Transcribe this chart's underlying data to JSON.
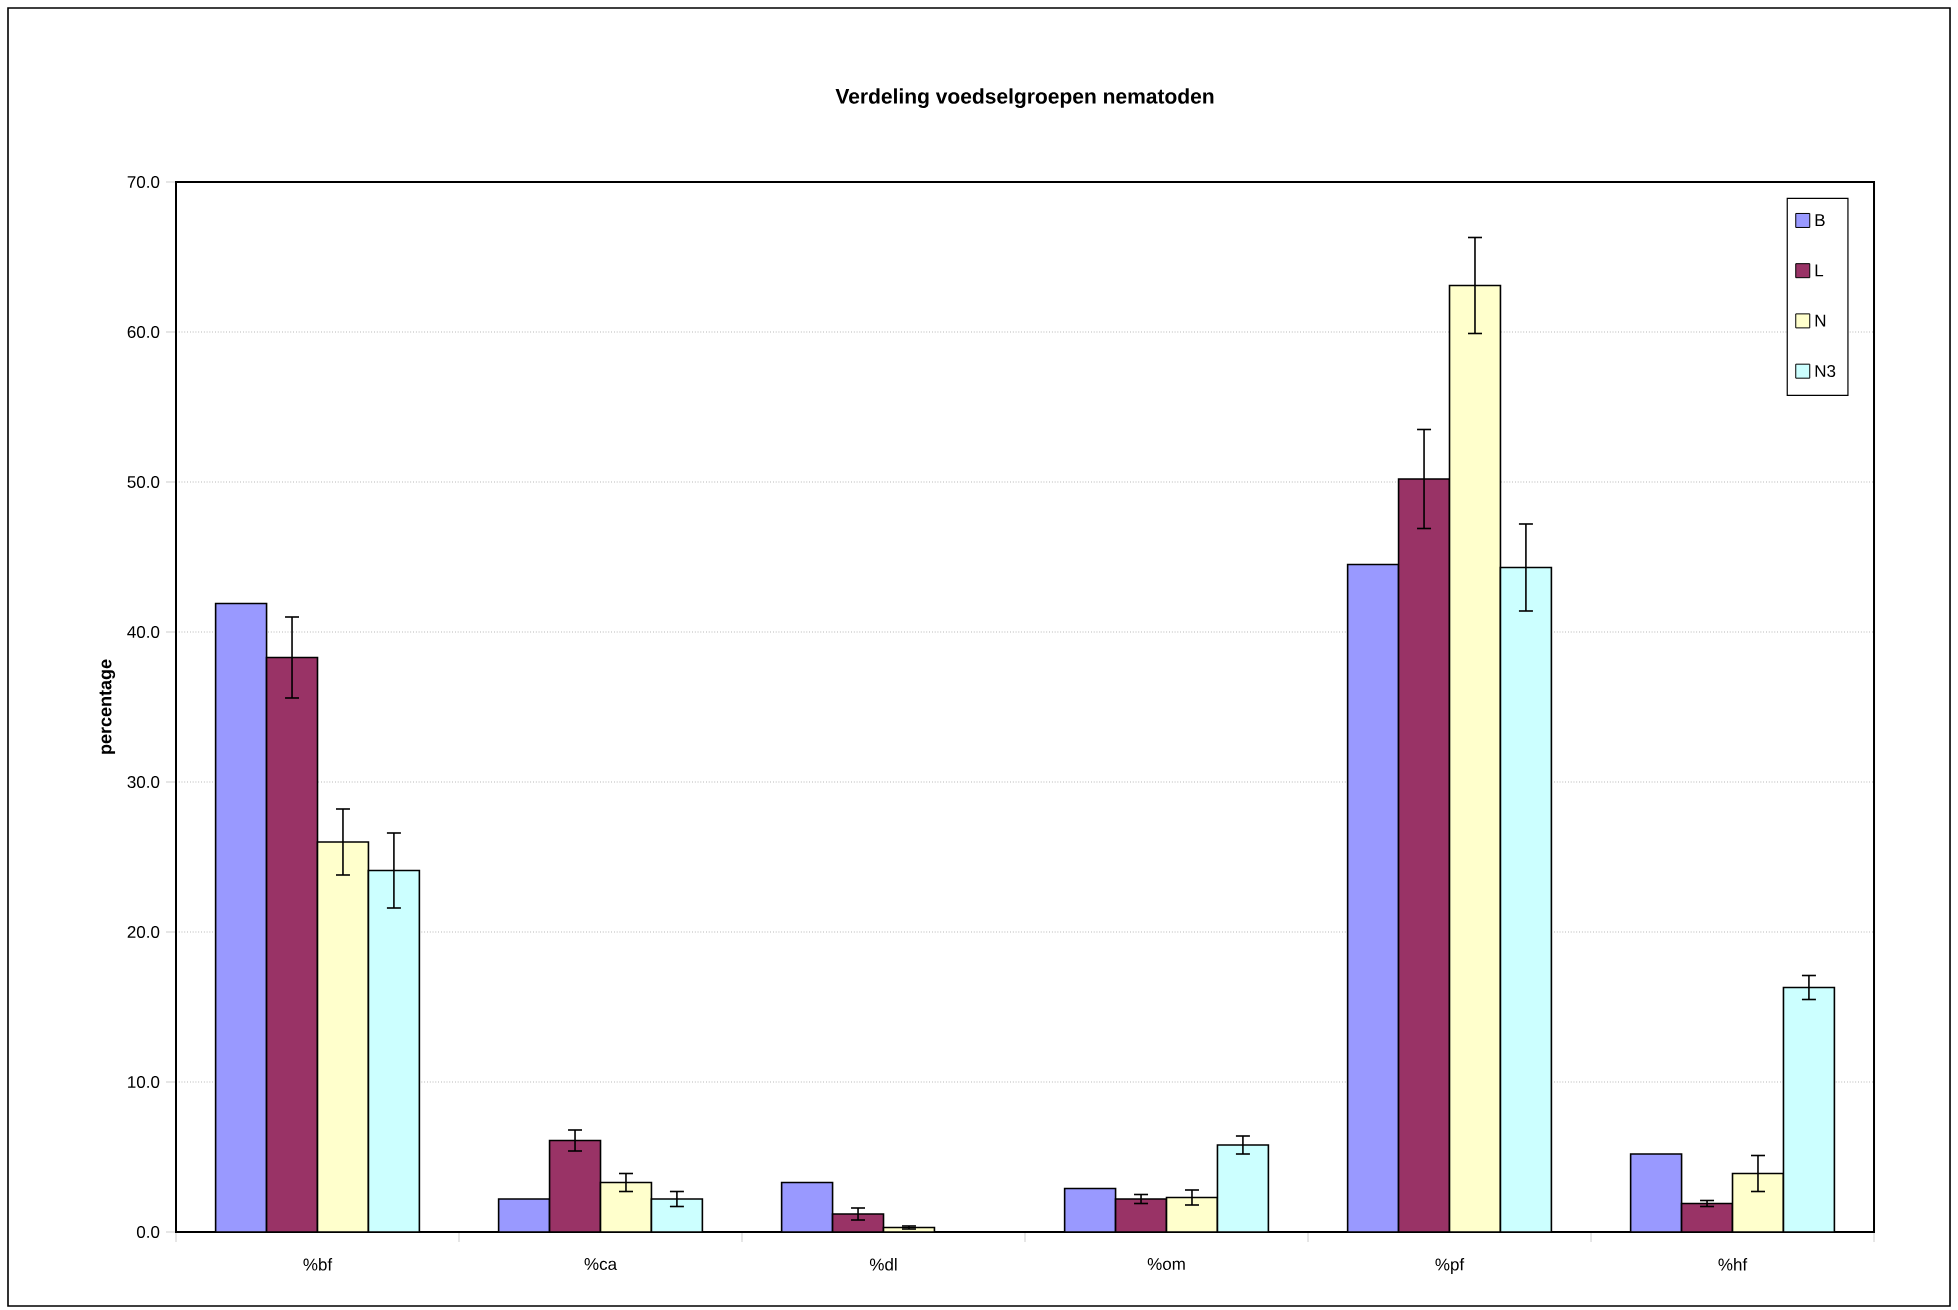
{
  "chart_data": {
    "type": "bar",
    "title": "Verdeling voedselgroepen nematoden",
    "ylabel": "percentage",
    "categories": [
      "%bf",
      "%ca",
      "%dl",
      "%om",
      "%pf",
      "%hf"
    ],
    "series": [
      {
        "name": "B",
        "color": "#9999ff",
        "values": [
          41.9,
          2.2,
          3.3,
          2.9,
          44.5,
          5.2
        ]
      },
      {
        "name": "L",
        "color": "#993366",
        "values": [
          38.3,
          6.1,
          1.2,
          2.2,
          50.2,
          1.9
        ],
        "errors": [
          2.7,
          0.7,
          0.4,
          0.3,
          3.3,
          0.2
        ]
      },
      {
        "name": "N",
        "color": "#ffffcc",
        "values": [
          26.0,
          3.3,
          0.3,
          2.3,
          63.1,
          3.9
        ],
        "errors": [
          2.2,
          0.6,
          0.1,
          0.5,
          3.2,
          1.2
        ]
      },
      {
        "name": "N3",
        "color": "#ccffff",
        "values": [
          24.1,
          2.2,
          0.0,
          5.8,
          44.3,
          16.3
        ],
        "errors": [
          2.5,
          0.5,
          null,
          0.6,
          2.9,
          0.8
        ]
      }
    ],
    "ylim": [
      0,
      70
    ],
    "yticks": [
      {
        "value": 0,
        "label": "0.0"
      },
      {
        "value": 10,
        "label": "10.0"
      },
      {
        "value": 20,
        "label": "20.0"
      },
      {
        "value": 30,
        "label": "30.0"
      },
      {
        "value": 40,
        "label": "40.0"
      },
      {
        "value": 50,
        "label": "50.0"
      },
      {
        "value": 60,
        "label": "60.0"
      },
      {
        "value": 70,
        "label": "70.0"
      }
    ],
    "grid": "y",
    "legend": "top right"
  }
}
